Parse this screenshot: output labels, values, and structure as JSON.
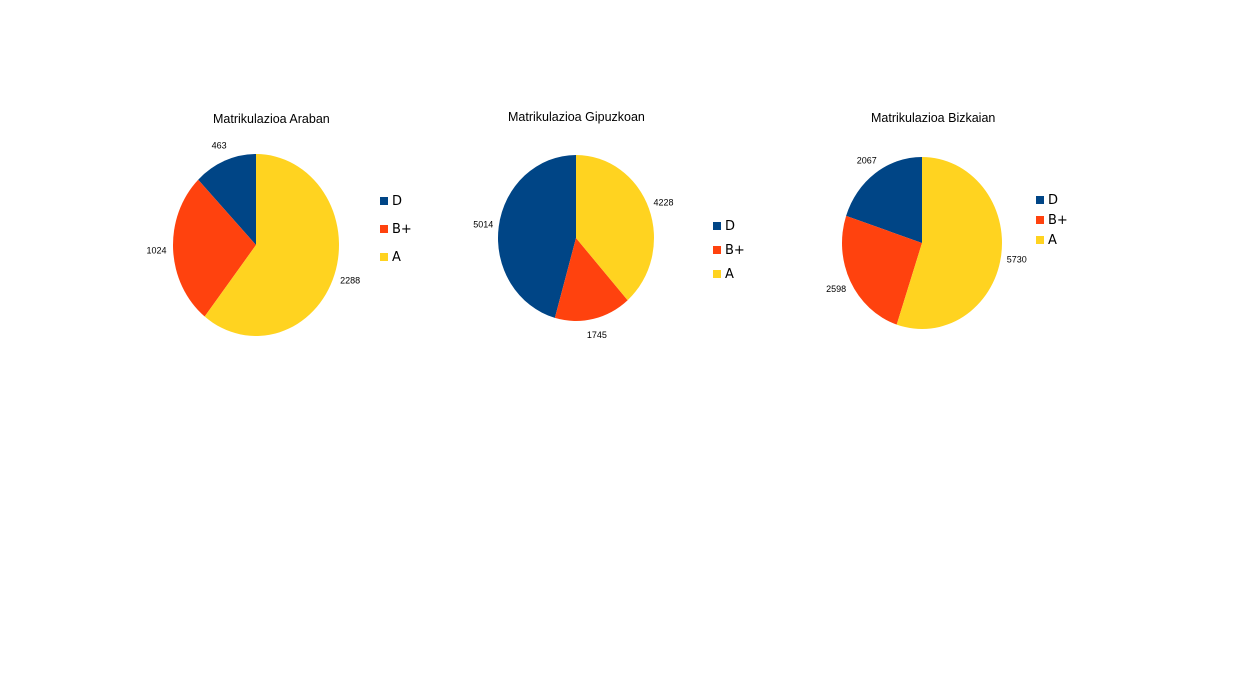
{
  "colors": {
    "D": "#004586",
    "B+": "#ff420e",
    "A": "#ffd320"
  },
  "chart_data": [
    {
      "type": "pie",
      "title": "Matrikulazioa Araban",
      "categories": [
        "D",
        "B+",
        "A"
      ],
      "values": [
        463,
        1024,
        2288
      ],
      "legend": [
        "D",
        "B+",
        "A"
      ],
      "legend_position": "right"
    },
    {
      "type": "pie",
      "title": "Matrikulazioa Gipuzkoan",
      "categories": [
        "D",
        "B+",
        "A"
      ],
      "values": [
        5014,
        1745,
        4228
      ],
      "legend": [
        "D",
        "B+",
        "A"
      ],
      "legend_position": "right"
    },
    {
      "type": "pie",
      "title": "Matrikulazioa Bizkaian",
      "categories": [
        "D",
        "B+",
        "A"
      ],
      "values": [
        2067,
        2598,
        5730
      ],
      "legend": [
        "D",
        "B+",
        "A"
      ],
      "legend_position": "right"
    }
  ]
}
